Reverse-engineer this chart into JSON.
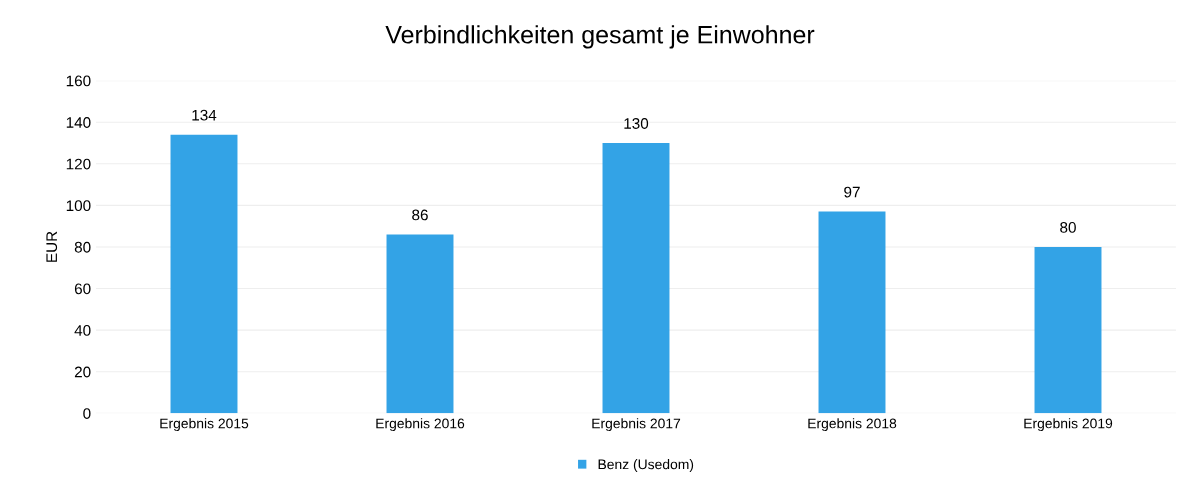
{
  "chart_data": {
    "type": "bar",
    "title": "Verbindlichkeiten gesamt je Einwohner",
    "ylabel": "EUR",
    "categories": [
      "Ergebnis 2015",
      "Ergebnis 2016",
      "Ergebnis 2017",
      "Ergebnis 2018",
      "Ergebnis 2019"
    ],
    "series": [
      {
        "name": "Benz (Usedom)",
        "color": "#33a3e6",
        "values": [
          134,
          86,
          130,
          97,
          80
        ]
      }
    ],
    "ylim": [
      0,
      160
    ],
    "yticks": [
      0,
      20,
      40,
      60,
      80,
      100,
      120,
      140,
      160
    ],
    "grid": "y",
    "legend": "bottom",
    "data_labels": true
  }
}
